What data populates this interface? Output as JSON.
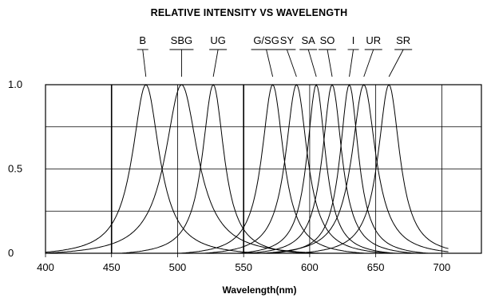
{
  "chart_data": {
    "type": "line",
    "title": "RELATIVE INTENSITY VS WAVELENGTH",
    "xlabel": "Wavelength(nm)",
    "ylabel": "",
    "xlim": [
      400,
      730
    ],
    "ylim": [
      0,
      1.0
    ],
    "x_ticks": [
      400,
      450,
      500,
      550,
      600,
      650,
      700
    ],
    "y_ticks": [
      {
        "value": 0,
        "label": "0"
      },
      {
        "value": 0.5,
        "label": "0.5"
      },
      {
        "value": 1.0,
        "label": "1.0"
      }
    ],
    "grid": true,
    "series": [
      {
        "name": "B",
        "peak": 476,
        "fwhm": 25
      },
      {
        "name": "SBG",
        "peak": 503,
        "fwhm": 30
      },
      {
        "name": "UG",
        "peak": 527,
        "fwhm": 20
      },
      {
        "name": "G/SG",
        "peak": 572,
        "fwhm": 20
      },
      {
        "name": "SY",
        "peak": 590,
        "fwhm": 20
      },
      {
        "name": "SA",
        "peak": 605,
        "fwhm": 17
      },
      {
        "name": "SO",
        "peak": 617,
        "fwhm": 18
      },
      {
        "name": "I",
        "peak": 630,
        "fwhm": 17
      },
      {
        "name": "UR",
        "peak": 641,
        "fwhm": 22
      },
      {
        "name": "SR",
        "peak": 660,
        "fwhm": 20
      }
    ]
  }
}
